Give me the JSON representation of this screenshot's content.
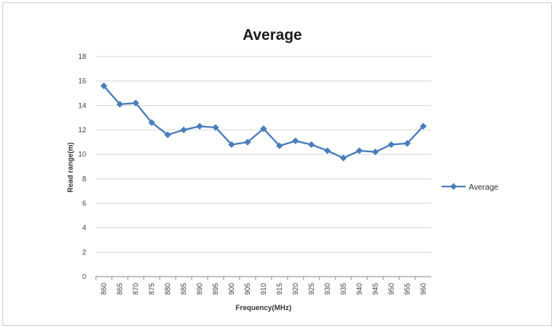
{
  "chart_data": {
    "type": "line",
    "title": "Average",
    "xlabel": "Frequency(MHz)",
    "ylabel": "Read range(m)",
    "categories": [
      "860",
      "865",
      "870",
      "875",
      "880",
      "885",
      "890",
      "895",
      "900",
      "905",
      "910",
      "915",
      "920",
      "925",
      "930",
      "935",
      "940",
      "945",
      "950",
      "955",
      "960"
    ],
    "series": [
      {
        "name": "Average",
        "color": "#4a7ebb",
        "values": [
          15.6,
          14.1,
          14.2,
          12.6,
          11.6,
          12.0,
          12.3,
          12.2,
          10.8,
          11.0,
          12.1,
          10.7,
          11.1,
          10.8,
          10.3,
          9.7,
          10.3,
          10.2,
          10.8,
          10.9,
          12.3
        ]
      }
    ],
    "ylim": [
      0,
      18
    ],
    "yticks": [
      0,
      2,
      4,
      6,
      8,
      10,
      12,
      14,
      16,
      18
    ],
    "grid": true,
    "legend_position": "right"
  }
}
